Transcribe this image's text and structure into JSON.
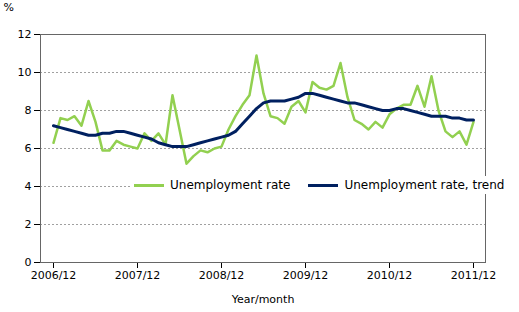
{
  "chart_data": {
    "type": "line",
    "x_label": "Year/month",
    "y_label": "%",
    "categories": [
      "2006/12",
      null,
      null,
      null,
      null,
      null,
      null,
      null,
      null,
      null,
      null,
      null,
      "2007/12",
      null,
      null,
      null,
      null,
      null,
      null,
      null,
      null,
      null,
      null,
      null,
      "2008/12",
      null,
      null,
      null,
      null,
      null,
      null,
      null,
      null,
      null,
      null,
      null,
      "2009/12",
      null,
      null,
      null,
      null,
      null,
      null,
      null,
      null,
      null,
      null,
      null,
      "2010/12",
      null,
      null,
      null,
      null,
      null,
      null,
      null,
      null,
      null,
      null,
      null,
      "2011/12"
    ],
    "series": [
      {
        "name": "Unemployment rate",
        "color": "#92d050",
        "values": [
          6.3,
          7.6,
          7.5,
          7.7,
          7.2,
          8.5,
          7.4,
          5.9,
          5.9,
          6.4,
          6.2,
          6.1,
          6.0,
          6.8,
          6.4,
          6.8,
          6.2,
          8.8,
          7.0,
          5.2,
          5.6,
          5.9,
          5.8,
          6.0,
          6.1,
          7.0,
          7.7,
          8.3,
          8.8,
          10.9,
          8.9,
          7.7,
          7.6,
          7.3,
          8.2,
          8.5,
          7.9,
          9.5,
          9.2,
          9.1,
          9.3,
          10.5,
          8.7,
          7.5,
          7.3,
          7.0,
          7.4,
          7.1,
          7.8,
          8.1,
          8.3,
          8.3,
          9.3,
          8.2,
          9.8,
          8.0,
          6.9,
          6.6,
          6.9,
          6.2,
          7.4
        ]
      },
      {
        "name": "Unemployment rate, trend",
        "color": "#002060",
        "values": [
          7.2,
          7.1,
          7.0,
          6.9,
          6.8,
          6.7,
          6.7,
          6.8,
          6.8,
          6.9,
          6.9,
          6.8,
          6.7,
          6.6,
          6.5,
          6.3,
          6.2,
          6.1,
          6.1,
          6.1,
          6.2,
          6.3,
          6.4,
          6.5,
          6.6,
          6.7,
          6.9,
          7.3,
          7.7,
          8.1,
          8.4,
          8.5,
          8.5,
          8.5,
          8.6,
          8.7,
          8.9,
          8.9,
          8.8,
          8.7,
          8.6,
          8.5,
          8.4,
          8.4,
          8.3,
          8.2,
          8.1,
          8.0,
          8.0,
          8.1,
          8.1,
          8.0,
          7.9,
          7.8,
          7.7,
          7.7,
          7.7,
          7.6,
          7.6,
          7.5,
          7.5
        ]
      }
    ],
    "ylim": [
      0,
      12
    ],
    "yticks": [
      0,
      2,
      4,
      6,
      8,
      10,
      12
    ],
    "grid": true,
    "legend": "bottom"
  }
}
